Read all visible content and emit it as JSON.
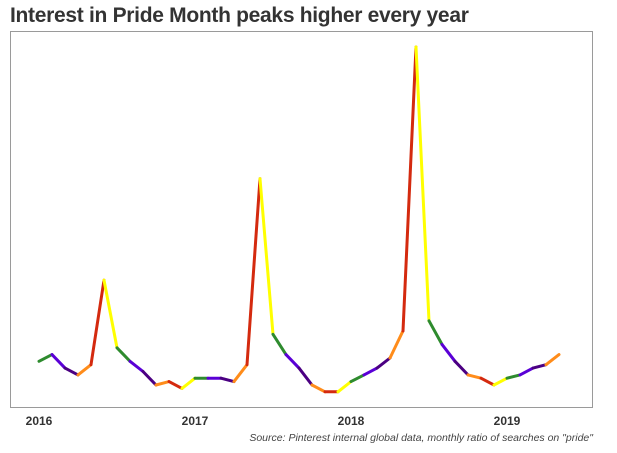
{
  "chart_data": {
    "type": "line",
    "title": "Interest in Pride Month peaks higher every year",
    "source": "Source: Pinterest internal global data, monthly ratio of searches on \"pride\"",
    "xlabel": "",
    "ylabel": "",
    "x_ticks": [
      "2016",
      "2017",
      "2018",
      "2019"
    ],
    "x": [
      "2016-01",
      "2016-02",
      "2016-03",
      "2016-04",
      "2016-05",
      "2016-06",
      "2016-07",
      "2016-08",
      "2016-09",
      "2016-10",
      "2016-11",
      "2016-12",
      "2017-01",
      "2017-02",
      "2017-03",
      "2017-04",
      "2017-05",
      "2017-06",
      "2017-07",
      "2017-08",
      "2017-09",
      "2017-10",
      "2017-11",
      "2017-12",
      "2018-01",
      "2018-02",
      "2018-03",
      "2018-04",
      "2018-05",
      "2018-06",
      "2018-07",
      "2018-08",
      "2018-09",
      "2018-10",
      "2018-11",
      "2018-12",
      "2019-01",
      "2019-02",
      "2019-03",
      "2019-04",
      "2019-05"
    ],
    "y": [
      0.07,
      0.09,
      0.05,
      0.03,
      0.06,
      0.31,
      0.11,
      0.07,
      0.04,
      0.0,
      0.01,
      -0.01,
      0.02,
      0.02,
      0.02,
      0.01,
      0.06,
      0.61,
      0.15,
      0.09,
      0.05,
      0.0,
      -0.02,
      -0.02,
      0.01,
      0.03,
      0.05,
      0.08,
      0.16,
      1.0,
      0.19,
      0.12,
      0.07,
      0.03,
      0.02,
      0.0,
      0.02,
      0.03,
      0.05,
      0.06,
      0.09
    ],
    "segment_colors": [
      "#2e8b2e",
      "#5a00d6",
      "#4b0082",
      "#ff8c1a",
      "#d42a0f",
      "#ffff00",
      "#2e8b2e",
      "#5a00d6",
      "#4b0082",
      "#ff8c1a",
      "#d42a0f",
      "#ffff00",
      "#2e8b2e",
      "#5a00d6",
      "#4b0082",
      "#ff8c1a",
      "#d42a0f",
      "#ffff00",
      "#2e8b2e",
      "#5a00d6",
      "#4b0082",
      "#ff8c1a",
      "#d42a0f",
      "#ffff00",
      "#2e8b2e",
      "#5a00d6",
      "#4b0082",
      "#ff8c1a",
      "#d42a0f",
      "#ffff00",
      "#2e8b2e",
      "#5a00d6",
      "#4b0082",
      "#ff8c1a",
      "#d42a0f",
      "#ffff00",
      "#2e8b2e",
      "#5a00d6",
      "#4b0082",
      "#ff8c1a"
    ],
    "grid": false,
    "legend": "none"
  }
}
